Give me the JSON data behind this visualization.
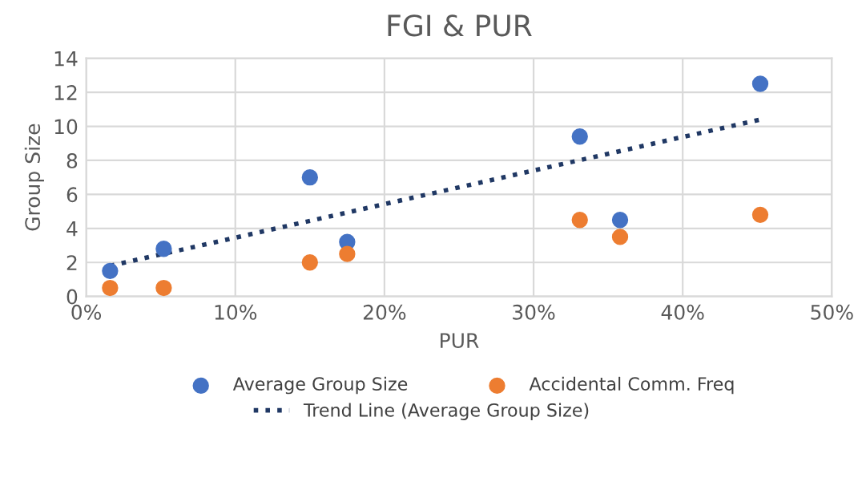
{
  "chart_data": {
    "type": "scatter",
    "title": "FGI & PUR",
    "xlabel": "PUR",
    "ylabel": "Group Size",
    "xlim": [
      0,
      50
    ],
    "xticks": [
      {
        "value": 0,
        "label": "0%"
      },
      {
        "value": 10,
        "label": "10%"
      },
      {
        "value": 20,
        "label": "20%"
      },
      {
        "value": 30,
        "label": "30%"
      },
      {
        "value": 40,
        "label": "40%"
      },
      {
        "value": 50,
        "label": "50%"
      }
    ],
    "ylim": [
      0,
      14
    ],
    "yticks": [
      0,
      2,
      4,
      6,
      8,
      10,
      12,
      14
    ],
    "grid": true,
    "legend": "bottom",
    "x": [
      1.6,
      5.2,
      15.0,
      17.5,
      33.1,
      35.8,
      45.2
    ],
    "series": [
      {
        "name": "Average Group Size",
        "marker": "circle",
        "color": "#4472c4",
        "values": [
          1.5,
          2.8,
          7.0,
          3.2,
          9.4,
          4.5,
          12.5
        ]
      },
      {
        "name": "Accidental Comm. Freq",
        "marker": "circle",
        "color": "#ed7d31",
        "values": [
          0.5,
          0.5,
          2.0,
          2.5,
          4.5,
          3.5,
          4.8
        ]
      },
      {
        "name": "Trend Line (Average Group Size)",
        "type": "line",
        "marker": "none",
        "color": "#203864",
        "line_style": "dotted",
        "x": [
          1.6,
          45.2
        ],
        "values": [
          1.8,
          10.4
        ]
      }
    ]
  }
}
